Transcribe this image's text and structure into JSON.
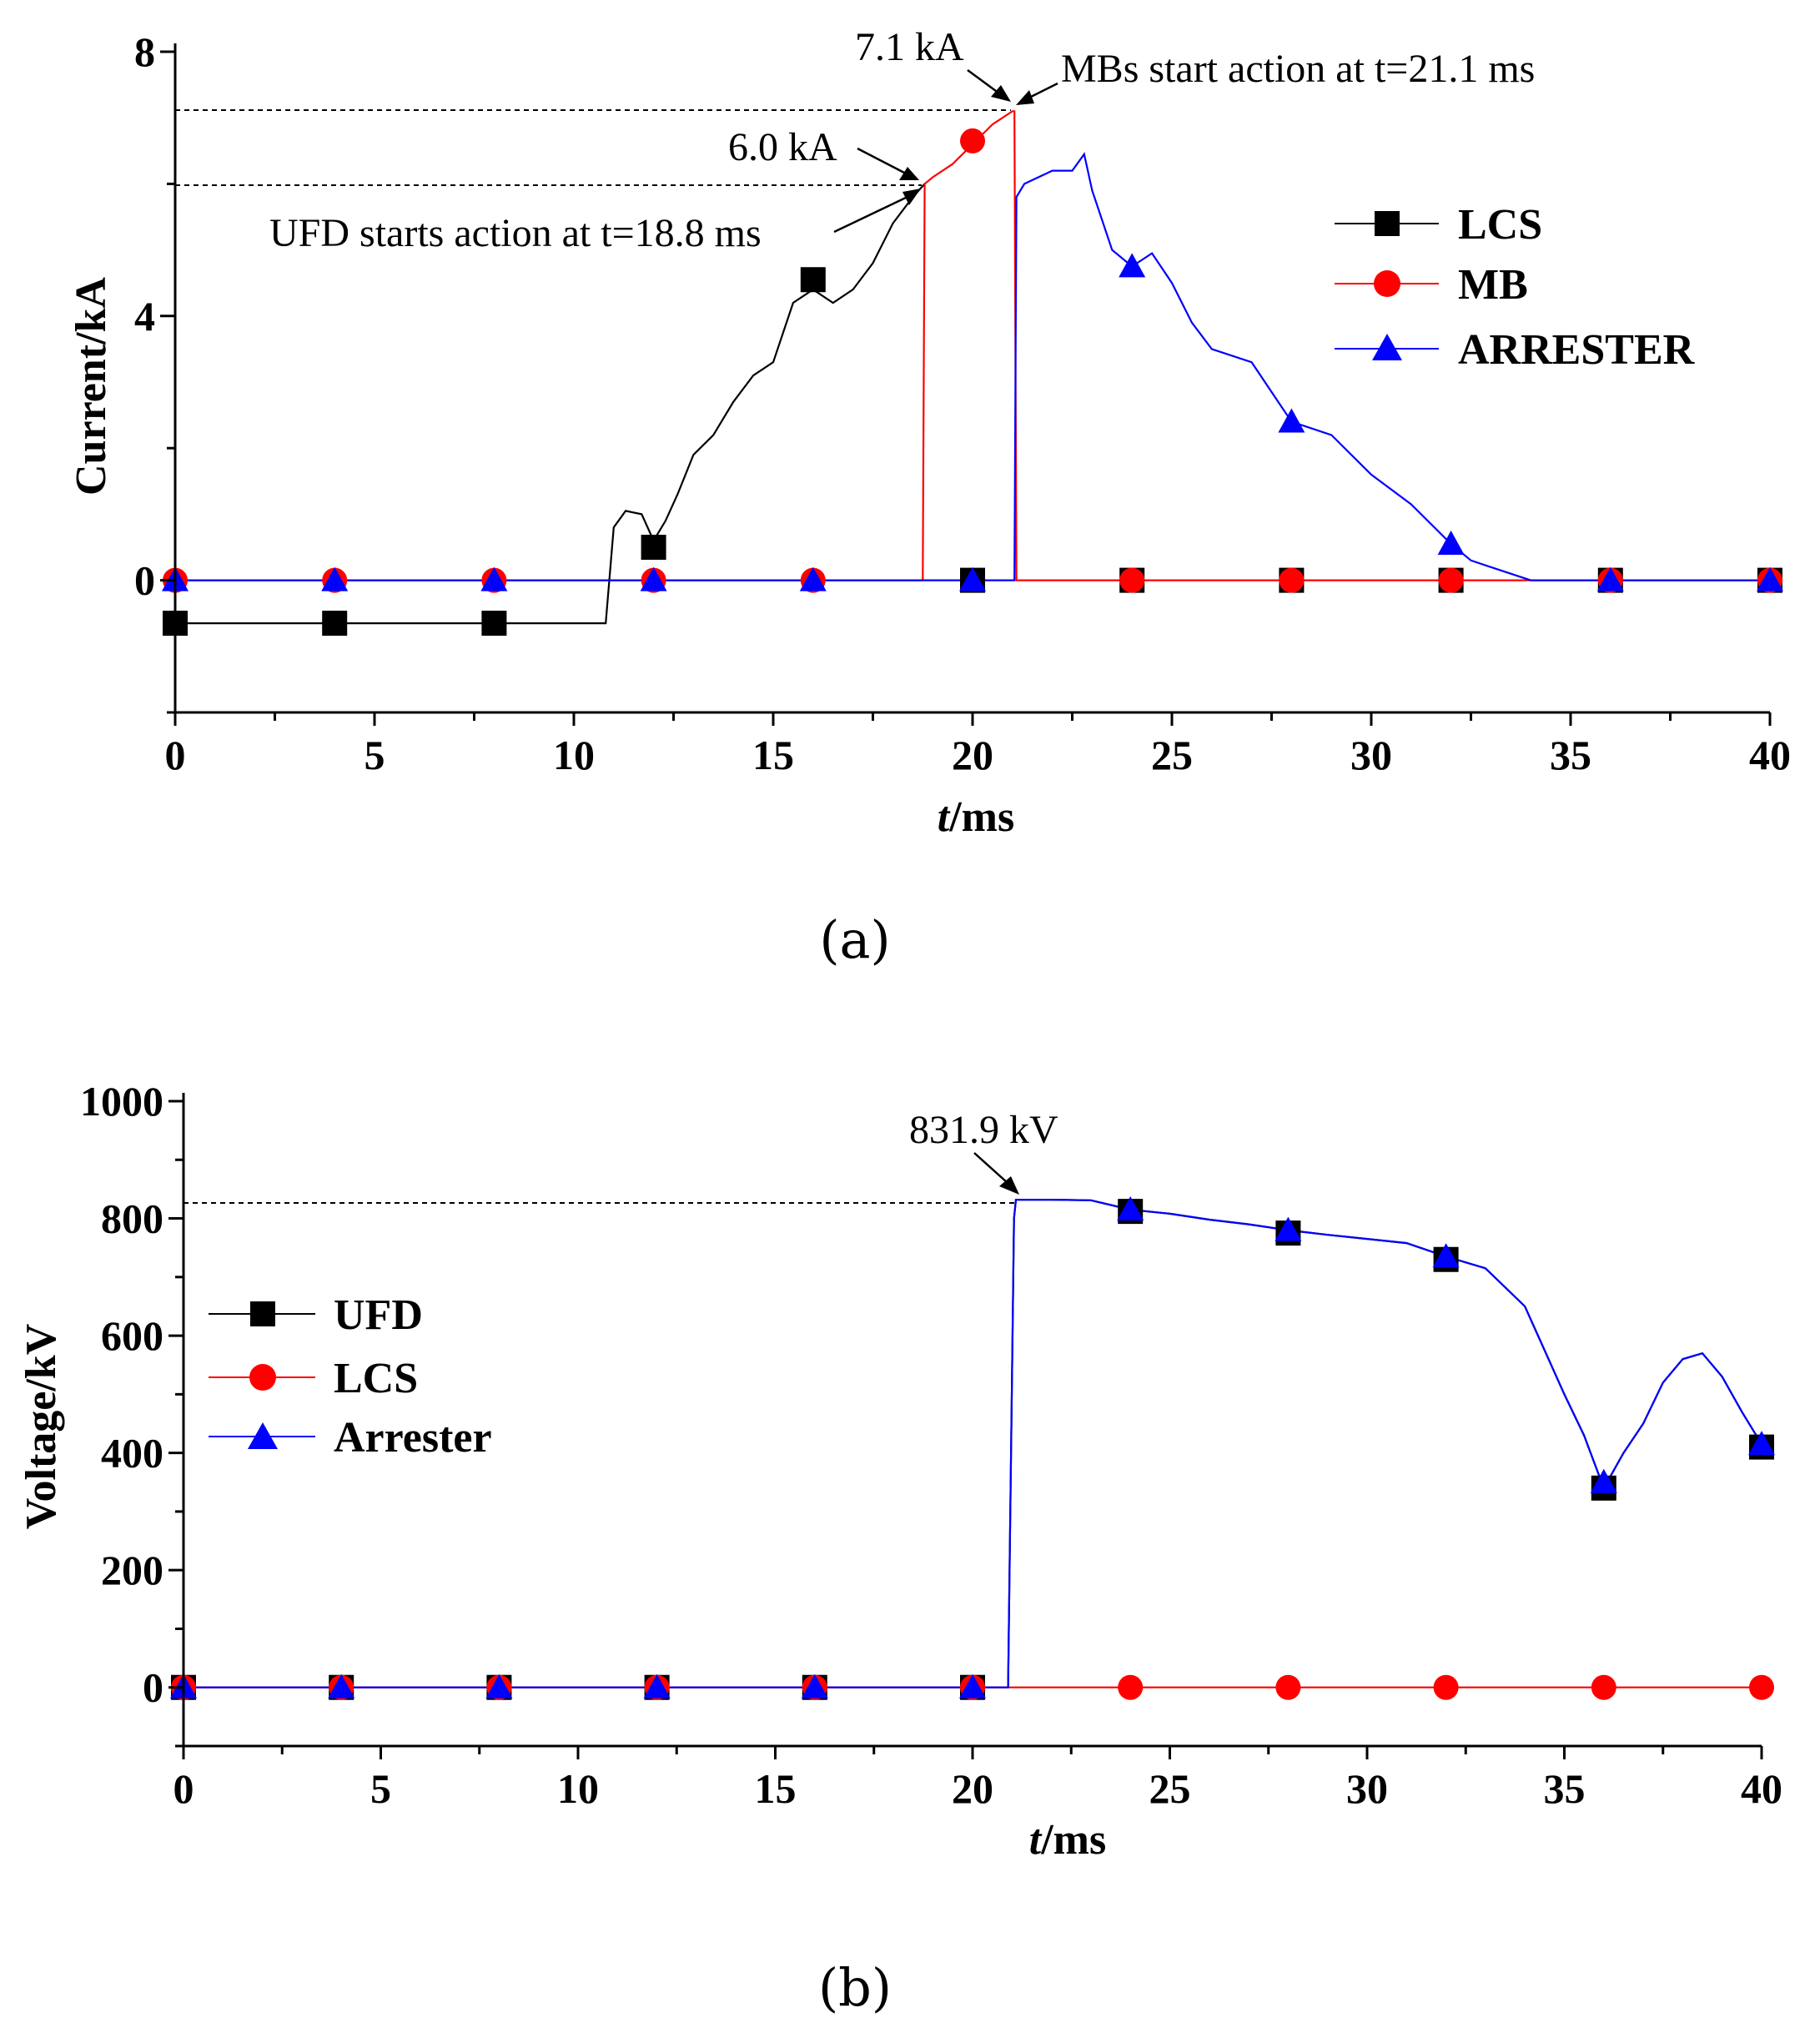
{
  "chart_data": [
    {
      "type": "line",
      "panel_label": "(a)",
      "xlabel": "t/ms",
      "ylabel": "Current/kA",
      "xlim": [
        0,
        40
      ],
      "ylim": [
        -2,
        8
      ],
      "xticks": [
        "0",
        "5",
        "10",
        "15",
        "20",
        "25",
        "30",
        "35",
        "40"
      ],
      "yticks": [
        "0",
        "4",
        "8"
      ],
      "series": [
        {
          "name": "LCS",
          "color": "#000000",
          "marker": "square",
          "x": [
            0,
            2,
            4,
            6,
            8,
            10,
            10.8,
            11,
            11.3,
            11.7,
            12,
            12.3,
            12.6,
            13,
            13.5,
            14,
            14.5,
            15,
            15.5,
            16,
            16.5,
            17,
            17.5,
            18,
            18.5,
            18.8
          ],
          "y": [
            -0.65,
            -0.65,
            -0.65,
            -0.65,
            -0.65,
            -0.65,
            -0.65,
            0.8,
            1.05,
            1.0,
            0.6,
            0.9,
            1.3,
            1.9,
            2.2,
            2.7,
            3.1,
            3.3,
            4.2,
            4.4,
            4.2,
            4.4,
            4.8,
            5.4,
            5.8,
            6.0
          ],
          "markers_x": [
            0,
            4,
            8,
            12,
            16,
            20,
            24,
            28,
            32,
            36,
            40
          ],
          "markers_y": [
            -0.65,
            -0.65,
            -0.65,
            0.5,
            4.55,
            0,
            0,
            0,
            0,
            0,
            0
          ]
        },
        {
          "name": "MB",
          "color": "#ff0000",
          "marker": "circle",
          "x": [
            0,
            18.75,
            18.8,
            19,
            19.5,
            20,
            20.5,
            21.0,
            21.05,
            21.1,
            40
          ],
          "y": [
            0,
            0,
            6.0,
            6.1,
            6.3,
            6.6,
            6.9,
            7.1,
            7.1,
            0,
            0
          ],
          "markers_x": [
            0,
            4,
            8,
            12,
            16,
            20,
            24,
            28,
            32,
            36,
            40
          ],
          "markers_y": [
            0,
            0,
            0,
            0,
            0,
            6.65,
            0,
            0,
            0,
            0,
            0
          ]
        },
        {
          "name": "ARRESTER",
          "color": "#0000ff",
          "marker": "triangle",
          "x": [
            0,
            21.05,
            21.1,
            21.3,
            22,
            22.5,
            22.8,
            23,
            23.5,
            24,
            24.5,
            25,
            25.5,
            26,
            27,
            28,
            29,
            30,
            31,
            32,
            32.5,
            33,
            33.5,
            34,
            40
          ],
          "y": [
            0,
            0,
            5.8,
            6.0,
            6.2,
            6.2,
            6.45,
            5.9,
            5.0,
            4.75,
            4.95,
            4.5,
            3.9,
            3.5,
            3.3,
            2.4,
            2.2,
            1.6,
            1.15,
            0.55,
            0.3,
            0.2,
            0.1,
            0,
            0
          ],
          "markers_x": [
            0,
            4,
            8,
            12,
            16,
            20,
            24,
            28,
            32,
            36,
            40
          ],
          "markers_y": [
            0,
            0,
            0,
            0,
            0,
            0,
            4.75,
            2.4,
            0.55,
            0,
            0
          ]
        }
      ],
      "annotations": [
        {
          "text": "7.1 kA",
          "ref_value": 7.1
        },
        {
          "text": "MBs start action at t=21.1 ms"
        },
        {
          "text": "6.0 kA",
          "ref_value": 6.0
        },
        {
          "text": "UFD starts action at t=18.8 ms"
        }
      ],
      "legend_position": "center-right"
    },
    {
      "type": "line",
      "panel_label": "(b)",
      "xlabel": "t/ms",
      "ylabel": "Voltage/kV",
      "xlim": [
        0,
        40
      ],
      "ylim": [
        -100,
        1000
      ],
      "xticks": [
        "0",
        "5",
        "10",
        "15",
        "20",
        "25",
        "30",
        "35",
        "40"
      ],
      "yticks": [
        "0",
        "200",
        "400",
        "600",
        "800",
        "1000"
      ],
      "series": [
        {
          "name": "UFD",
          "color": "#000000",
          "marker": "square",
          "x": [
            0,
            18.8,
            20.9,
            21.05,
            21.1,
            22,
            23,
            24,
            25,
            26,
            27,
            28,
            29,
            30,
            31,
            32,
            33,
            34,
            35,
            35.5,
            36,
            36.5,
            37,
            37.5,
            38,
            38.5,
            39,
            39.5,
            40
          ],
          "y": [
            0,
            0,
            0,
            800,
            831.9,
            832,
            831,
            815,
            808,
            798,
            790,
            780,
            772,
            765,
            758,
            735,
            715,
            650,
            500,
            430,
            340,
            400,
            450,
            520,
            560,
            570,
            530,
            470,
            415
          ],
          "markers_x": [
            0,
            4,
            8,
            12,
            16,
            20,
            24,
            28,
            32,
            36,
            40
          ],
          "markers_y": [
            0,
            0,
            0,
            0,
            0,
            0,
            812,
            775,
            730,
            340,
            410
          ]
        },
        {
          "name": "LCS",
          "color": "#ff0000",
          "marker": "circle",
          "x": [
            0,
            40
          ],
          "y": [
            0,
            0
          ],
          "markers_x": [
            0,
            4,
            8,
            12,
            16,
            20,
            24,
            28,
            32,
            36,
            40
          ],
          "markers_y": [
            0,
            0,
            0,
            0,
            0,
            0,
            0,
            0,
            0,
            0,
            0
          ]
        },
        {
          "name": "Arrester",
          "color": "#0000ff",
          "marker": "triangle",
          "x": [
            0,
            18.8,
            20.9,
            21.05,
            21.1,
            22,
            23,
            24,
            25,
            26,
            27,
            28,
            29,
            30,
            31,
            32,
            33,
            34,
            35,
            35.5,
            36,
            36.5,
            37,
            37.5,
            38,
            38.5,
            39,
            39.5,
            40
          ],
          "y": [
            0,
            0,
            0,
            800,
            831.9,
            832,
            831,
            815,
            808,
            798,
            790,
            780,
            772,
            765,
            758,
            735,
            715,
            650,
            500,
            430,
            340,
            400,
            450,
            520,
            560,
            570,
            530,
            470,
            415
          ],
          "markers_x": [
            0,
            4,
            8,
            12,
            16,
            20,
            24,
            28,
            32,
            36,
            40
          ],
          "markers_y": [
            0,
            0,
            0,
            0,
            0,
            0,
            815,
            780,
            735,
            350,
            415
          ]
        }
      ],
      "annotations": [
        {
          "text": "831.9 kV",
          "ref_value": 831.9
        }
      ],
      "legend_position": "center-left"
    }
  ]
}
